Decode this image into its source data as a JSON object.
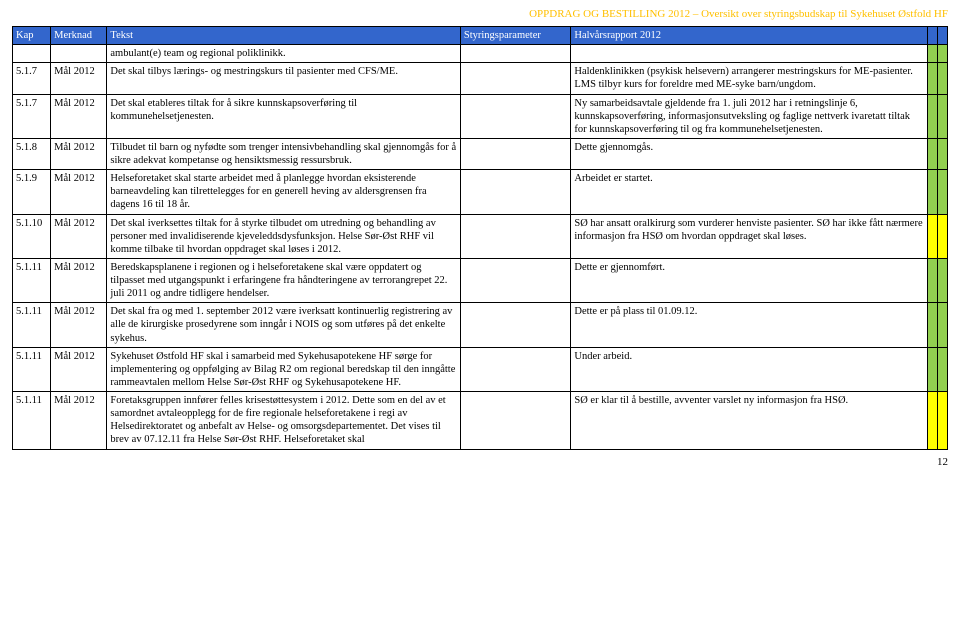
{
  "header": "OPPDRAG OG BESTILLING 2012 – Oversikt over styringsbudskap til Sykehuset Østfold HF",
  "columns": {
    "kap": "Kap",
    "merknad": "Merknad",
    "tekst": "Tekst",
    "styringsparameter": "Styringsparameter",
    "halvar": "Halvårsrapport 2012"
  },
  "rows": [
    {
      "kap": "",
      "merk": "",
      "tekst": "ambulant(e) team og regional poliklinikk.",
      "styr": "",
      "halv": "",
      "c1": "green",
      "c2": "green"
    },
    {
      "kap": "5.1.7",
      "merk": "Mål 2012",
      "tekst": "Det skal tilbys lærings- og mestringskurs til pasienter med CFS/ME.",
      "styr": "",
      "halv": "Haldenklinikken (psykisk helsevern) arrangerer mestringskurs for ME-pasienter. LMS tilbyr kurs for foreldre med ME-syke barn/ungdom.",
      "c1": "green",
      "c2": "green"
    },
    {
      "kap": "5.1.7",
      "merk": "Mål 2012",
      "tekst": "Det skal etableres tiltak for å sikre kunnskapsoverføring til kommunehelsetjenesten.",
      "styr": "",
      "halv": "Ny samarbeidsavtale gjeldende fra 1. juli 2012 har i retningslinje 6, kunnskapsoverføring, informasjonsutveksling og faglige nettverk ivaretatt tiltak for kunnskapsoverføring til og fra kommunehelsetjenesten.",
      "c1": "green",
      "c2": "green"
    },
    {
      "kap": "5.1.8",
      "merk": "Mål 2012",
      "tekst": "Tilbudet til barn og nyfødte som trenger intensivbehandling skal gjennomgås for å sikre adekvat kompetanse og hensiktsmessig ressursbruk.",
      "styr": "",
      "halv": "Dette gjennomgås.",
      "c1": "green",
      "c2": "green"
    },
    {
      "kap": "5.1.9",
      "merk": "Mål 2012",
      "tekst": "Helseforetaket skal starte arbeidet med å planlegge hvordan eksisterende barneavdeling kan tilrettelegges for en generell heving av aldersgrensen fra dagens 16 til 18 år.",
      "styr": "",
      "halv": "Arbeidet er startet.",
      "c1": "green",
      "c2": "green"
    },
    {
      "kap": "5.1.10",
      "merk": "Mål 2012",
      "tekst": "Det skal iverksettes tiltak for å styrke tilbudet om utredning og behandling av personer med invalidiserende kjeveleddsdysfunksjon. Helse Sør-Øst RHF vil komme tilbake til hvordan oppdraget skal løses i 2012.",
      "styr": "",
      "halv": "SØ har ansatt oralkirurg som vurderer henviste pasienter. SØ har ikke fått nærmere informasjon fra HSØ om hvordan oppdraget skal løses.",
      "c1": "yellow",
      "c2": "yellow"
    },
    {
      "kap": "5.1.11",
      "merk": "Mål 2012",
      "tekst": "Beredskapsplanene i regionen og i helseforetakene skal være oppdatert og tilpasset med utgangspunkt i erfaringene fra håndteringene av terrorangrepet 22. juli 2011 og andre tidligere hendelser.",
      "styr": "",
      "halv": "Dette er gjennomført.",
      "c1": "green",
      "c2": "green"
    },
    {
      "kap": "5.1.11",
      "merk": "Mål 2012",
      "tekst": "Det skal fra og med 1. september 2012 være iverksatt kontinuerlig registrering av alle de kirurgiske prosedyrene som inngår i NOIS og som utføres på det enkelte sykehus.",
      "styr": "",
      "halv": "Dette er på plass til 01.09.12.",
      "c1": "green",
      "c2": "green"
    },
    {
      "kap": "5.1.11",
      "merk": "Mål 2012",
      "tekst": "Sykehuset Østfold HF skal i samarbeid med Sykehusapotekene HF sørge for implementering og oppfølging av Bilag R2 om regional beredskap til den inngåtte rammeavtalen mellom Helse Sør-Øst RHF og Sykehusapotekene HF.",
      "styr": "",
      "halv": "Under arbeid.",
      "c1": "green",
      "c2": "green"
    },
    {
      "kap": "5.1.11",
      "merk": "Mål 2012",
      "tekst": "Foretaksgruppen innfører felles krisestøttesystem i 2012. Dette som en del av et samordnet avtaleopplegg for de fire regionale helseforetakene i regi av Helsedirektoratet og anbefalt av Helse- og omsorgsdepartementet. Det vises til brev av 07.12.11 fra Helse Sør-Øst RHF. Helseforetaket skal",
      "styr": "",
      "halv": "SØ er klar til å bestille, avventer varslet ny informasjon fra HSØ.",
      "c1": "yellow",
      "c2": "yellow"
    }
  ],
  "page_number": "12"
}
